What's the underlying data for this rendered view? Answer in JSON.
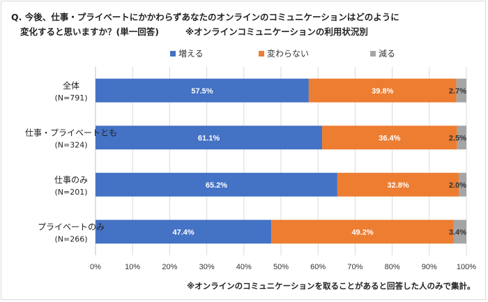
{
  "title": {
    "line1": "Q.  今後、仕事・プライベートにかかわらずあなたのオンラインのコミュニケーションはどのように",
    "line2": "変化すると思いますか？(単一回答)",
    "line2_sub": "※オンラインコミュニケーションの利用状況別"
  },
  "legend": [
    {
      "label": "増える",
      "color": "#4472c4"
    },
    {
      "label": "変わらない",
      "color": "#ed7d31"
    },
    {
      "label": "減る",
      "color": "#a5a5a5"
    }
  ],
  "footnote": "※オンラインのコミュニケーションを取ることがあると回答した人のみで集計。",
  "chart_data": {
    "type": "bar",
    "orientation": "horizontal",
    "stacked": "percent",
    "categories": [
      [
        "全体",
        "(N=791)"
      ],
      [
        "仕事・プライベートとも",
        "(N=324)"
      ],
      [
        "仕事のみ",
        "(N=201)"
      ],
      [
        "プライベートのみ",
        "(N=266)"
      ]
    ],
    "series": [
      {
        "name": "増える",
        "color": "#4472c4",
        "values": [
          57.5,
          61.1,
          65.2,
          47.4
        ],
        "labels": [
          "57.5%",
          "61.1%",
          "65.2%",
          "47.4%"
        ]
      },
      {
        "name": "変わらない",
        "color": "#ed7d31",
        "values": [
          39.8,
          36.4,
          32.8,
          49.2
        ],
        "labels": [
          "39.8%",
          "36.4%",
          "32.8%",
          "49.2%"
        ]
      },
      {
        "name": "減る",
        "color": "#a5a5a5",
        "values": [
          2.7,
          2.5,
          2.0,
          3.4
        ],
        "labels": [
          "2.7%",
          "2.5%",
          "2.0%",
          "3.4%"
        ]
      }
    ],
    "xlim": [
      0,
      100
    ],
    "xticks": [
      "0%",
      "10%",
      "20%",
      "30%",
      "40%",
      "50%",
      "60%",
      "70%",
      "80%",
      "90%",
      "100%"
    ],
    "grid": true,
    "legend_position": "top"
  }
}
